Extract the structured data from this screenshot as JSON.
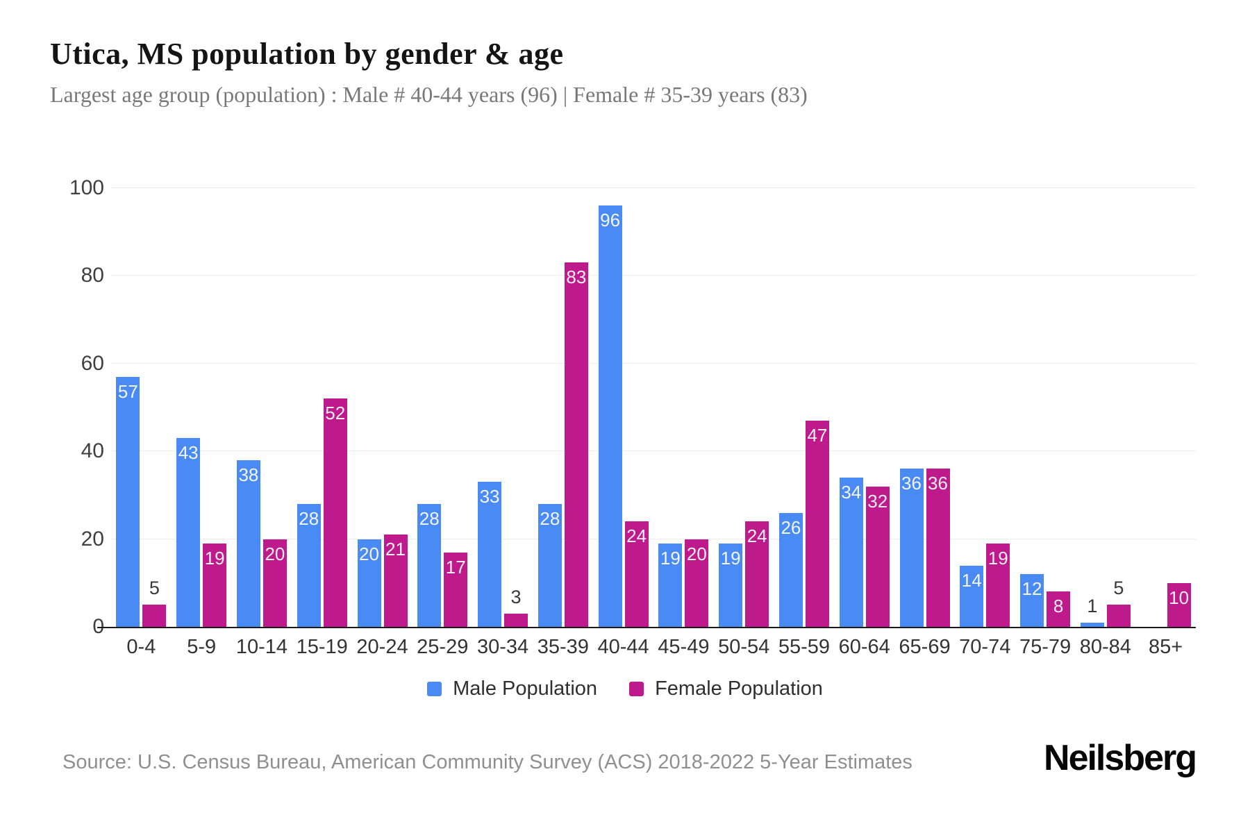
{
  "header": {
    "title": "Utica, MS population by gender & age",
    "subtitle": "Largest age group (population) : Male # 40-44 years (96) | Female # 35-39 years (83)"
  },
  "chart_data": {
    "type": "bar",
    "title": "Utica, MS population by gender & age",
    "xlabel": "",
    "ylabel": "",
    "categories": [
      "0-4",
      "5-9",
      "10-14",
      "15-19",
      "20-24",
      "25-29",
      "30-34",
      "35-39",
      "40-44",
      "45-49",
      "50-54",
      "55-59",
      "60-64",
      "65-69",
      "70-74",
      "75-79",
      "80-84",
      "85+"
    ],
    "series": [
      {
        "name": "Male Population",
        "color": "#4a8af4",
        "values": [
          57,
          43,
          38,
          28,
          20,
          28,
          33,
          28,
          96,
          19,
          19,
          26,
          34,
          36,
          14,
          12,
          1,
          0
        ]
      },
      {
        "name": "Female Population",
        "color": "#be1a8c",
        "values": [
          5,
          19,
          20,
          52,
          21,
          17,
          3,
          83,
          24,
          20,
          24,
          47,
          32,
          36,
          19,
          8,
          5,
          10
        ]
      }
    ],
    "ylim": [
      0,
      100
    ],
    "yticks": [
      0,
      20,
      40,
      60,
      80,
      100
    ],
    "grid": true,
    "legend_position": "bottom",
    "bar_value_labels": true
  },
  "footer": {
    "source": "Source: U.S. Census Bureau, American Community Survey (ACS) 2018-2022 5-Year Estimates",
    "brand": "Neilsberg"
  }
}
